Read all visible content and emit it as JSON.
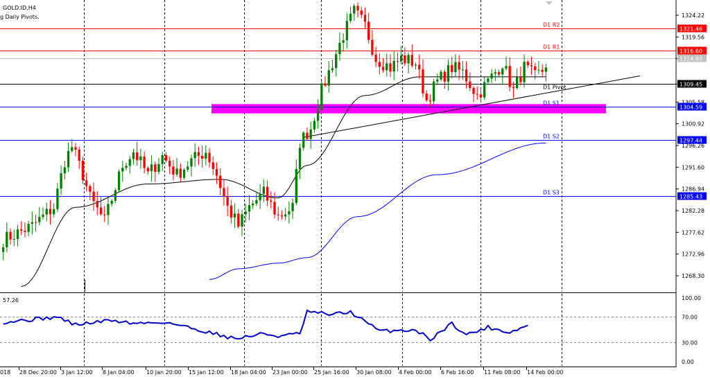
{
  "header": {
    "symbol": "GOLD.ID,H4",
    "indicator": "g Daily Pivots."
  },
  "chart_data": {
    "type": "candlestick",
    "price_axis": {
      "min": 1264.0,
      "max": 1328.0,
      "ticks": [
        "1324.22",
        "1319.56",
        "1314.90",
        "1309.46",
        "1305.58",
        "1300.92",
        "1296.26",
        "1291.60",
        "1286.94",
        "1282.28",
        "1277.62",
        "1272.96",
        "1268.30"
      ]
    },
    "time_axis": {
      "labels": [
        "018",
        "28 Dec 20:00",
        "3 Jan 12:00",
        "8 Jan 04:00",
        "10 Jan 20:00",
        "15 Jan 12:00",
        "18 Jan 04:00",
        "23 Jan 00:00",
        "25 Jan 16:00",
        "30 Jan 08:00",
        "4 Feb 00:00",
        "6 Feb 16:00",
        "11 Feb 08:00",
        "14 Feb 00:00"
      ],
      "bar_count": 186
    },
    "pivot_levels": [
      {
        "name": "D1 R2",
        "value": 1321.46,
        "badge": "1321.46",
        "color": "#ff0000"
      },
      {
        "name": "D1 R1",
        "value": 1316.6,
        "badge": "1316.60",
        "color": "#ff0000"
      },
      {
        "name": "D1 Pivot",
        "value": 1309.45,
        "badge": "1309.45",
        "color": "#000000"
      },
      {
        "name": "D1 S1",
        "value": 1304.59,
        "badge": "1304.59",
        "color": "#0000ff"
      },
      {
        "name": "D1 S2",
        "value": 1297.44,
        "badge": "1297.44",
        "color": "#0000ff"
      },
      {
        "name": "D1 S3",
        "value": 1285.43,
        "badge": "1285.43",
        "color": "#0000ff"
      }
    ],
    "current_price": {
      "value": "1314.93",
      "price": 1314.93
    },
    "support_zone": {
      "from": 1303.3,
      "to": 1305.0,
      "color": "#ff00ff"
    },
    "trendline": {
      "start": {
        "bar": 83,
        "price": 1298.0
      },
      "end": {
        "bar": 181,
        "price": 1311.2
      }
    },
    "anchor_points": [
      {
        "bar": 0,
        "price": 1276
      },
      {
        "bar": 8,
        "price": 1279
      },
      {
        "bar": 14,
        "price": 1283
      },
      {
        "bar": 17,
        "price": 1293
      },
      {
        "bar": 19,
        "price": 1296
      },
      {
        "bar": 22,
        "price": 1290
      },
      {
        "bar": 24,
        "price": 1285
      },
      {
        "bar": 28,
        "price": 1280
      },
      {
        "bar": 33,
        "price": 1292
      },
      {
        "bar": 36,
        "price": 1295
      },
      {
        "bar": 40,
        "price": 1290
      },
      {
        "bar": 44,
        "price": 1294
      },
      {
        "bar": 48,
        "price": 1290
      },
      {
        "bar": 52,
        "price": 1293
      },
      {
        "bar": 56,
        "price": 1295
      },
      {
        "bar": 59,
        "price": 1290
      },
      {
        "bar": 62,
        "price": 1283
      },
      {
        "bar": 65,
        "price": 1279
      },
      {
        "bar": 68,
        "price": 1283
      },
      {
        "bar": 72,
        "price": 1286
      },
      {
        "bar": 76,
        "price": 1281
      },
      {
        "bar": 80,
        "price": 1283
      },
      {
        "bar": 82,
        "price": 1297
      },
      {
        "bar": 85,
        "price": 1300
      },
      {
        "bar": 88,
        "price": 1308
      },
      {
        "bar": 91,
        "price": 1314
      },
      {
        "bar": 94,
        "price": 1320
      },
      {
        "bar": 97,
        "price": 1325
      },
      {
        "bar": 100,
        "price": 1322
      },
      {
        "bar": 103,
        "price": 1315
      },
      {
        "bar": 107,
        "price": 1313
      },
      {
        "bar": 110,
        "price": 1315
      },
      {
        "bar": 114,
        "price": 1314
      },
      {
        "bar": 117,
        "price": 1306
      },
      {
        "bar": 120,
        "price": 1310
      },
      {
        "bar": 124,
        "price": 1313
      },
      {
        "bar": 127,
        "price": 1312
      },
      {
        "bar": 131,
        "price": 1307
      },
      {
        "bar": 134,
        "price": 1310
      },
      {
        "bar": 138,
        "price": 1314
      },
      {
        "bar": 141,
        "price": 1308
      },
      {
        "bar": 144,
        "price": 1313
      },
      {
        "bar": 147,
        "price": 1311
      },
      {
        "bar": 150,
        "price": 1313
      }
    ],
    "ma_short_anchors": [
      {
        "bar": 5,
        "price": 1266
      },
      {
        "bar": 20,
        "price": 1283
      },
      {
        "bar": 40,
        "price": 1288
      },
      {
        "bar": 60,
        "price": 1289
      },
      {
        "bar": 76,
        "price": 1285
      },
      {
        "bar": 84,
        "price": 1292
      },
      {
        "bar": 100,
        "price": 1307
      },
      {
        "bar": 115,
        "price": 1311
      },
      {
        "bar": 150,
        "price": 1311
      }
    ],
    "ma_long_anchors": [
      {
        "bar": 57,
        "price": 1267.5
      },
      {
        "bar": 65,
        "price": 1269.8
      },
      {
        "bar": 76,
        "price": 1271.0
      },
      {
        "bar": 84,
        "price": 1272.2
      },
      {
        "bar": 98,
        "price": 1281
      },
      {
        "bar": 120,
        "price": 1290
      },
      {
        "bar": 150,
        "price": 1296.8
      }
    ],
    "oscillator": {
      "value_label": "57.26",
      "axis_ticks": [
        "100.00",
        "70.00",
        "30.00",
        "0.00"
      ],
      "levels": [
        70,
        30
      ],
      "anchor_points": [
        {
          "bar": 0,
          "value": 62
        },
        {
          "bar": 15,
          "value": 70
        },
        {
          "bar": 20,
          "value": 58
        },
        {
          "bar": 30,
          "value": 65
        },
        {
          "bar": 36,
          "value": 60
        },
        {
          "bar": 45,
          "value": 62
        },
        {
          "bar": 60,
          "value": 42
        },
        {
          "bar": 64,
          "value": 36
        },
        {
          "bar": 72,
          "value": 44
        },
        {
          "bar": 76,
          "value": 40
        },
        {
          "bar": 82,
          "value": 44
        },
        {
          "bar": 84,
          "value": 78
        },
        {
          "bar": 91,
          "value": 74
        },
        {
          "bar": 96,
          "value": 78
        },
        {
          "bar": 104,
          "value": 48
        },
        {
          "bar": 114,
          "value": 50
        },
        {
          "bar": 118,
          "value": 35
        },
        {
          "bar": 124,
          "value": 60
        },
        {
          "bar": 128,
          "value": 42
        },
        {
          "bar": 134,
          "value": 54
        },
        {
          "bar": 140,
          "value": 46
        },
        {
          "bar": 145,
          "value": 57
        }
      ]
    }
  }
}
